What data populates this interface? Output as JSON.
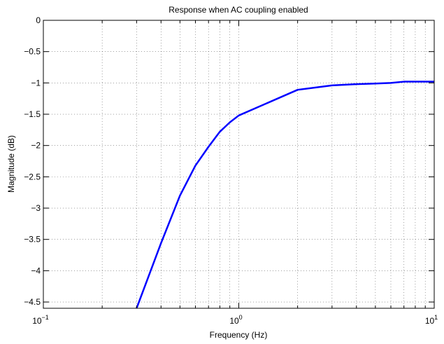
{
  "chart_data": {
    "type": "line",
    "title": "Response when AC coupling enabled",
    "xlabel": "Frequency (Hz)",
    "ylabel": "Magnitude (dB)",
    "xscale": "log",
    "xlim": [
      0.1,
      10
    ],
    "ylim": [
      -4.6,
      0
    ],
    "grid": true,
    "x_ticks": [
      {
        "value": 0.1,
        "base": "10",
        "exp": "−1"
      },
      {
        "value": 1,
        "base": "10",
        "exp": "0"
      },
      {
        "value": 10,
        "base": "10",
        "exp": "1"
      }
    ],
    "y_ticks": [
      {
        "value": 0,
        "label": "0"
      },
      {
        "value": -0.5,
        "label": "−0.5"
      },
      {
        "value": -1,
        "label": "−1"
      },
      {
        "value": -1.5,
        "label": "−1.5"
      },
      {
        "value": -2,
        "label": "−2"
      },
      {
        "value": -2.5,
        "label": "−2.5"
      },
      {
        "value": -3,
        "label": "−3"
      },
      {
        "value": -3.5,
        "label": "−3.5"
      },
      {
        "value": -4,
        "label": "−4"
      },
      {
        "value": -4.5,
        "label": "−4.5"
      }
    ],
    "series": [
      {
        "color": "#0000ff",
        "x": [
          0.3,
          0.4,
          0.5,
          0.6,
          0.7,
          0.8,
          0.9,
          1,
          2,
          3,
          4,
          5,
          6,
          7,
          8,
          9,
          10
        ],
        "y": [
          -4.6,
          -3.56,
          -2.8,
          -2.32,
          -2.02,
          -1.78,
          -1.63,
          -1.52,
          -1.11,
          -1.04,
          -1.02,
          -1.01,
          -1.0,
          -0.98,
          -0.98,
          -0.98,
          -0.98
        ]
      }
    ]
  }
}
